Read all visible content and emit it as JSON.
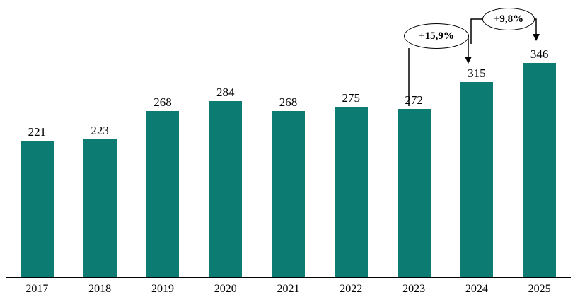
{
  "chart_data": {
    "type": "bar",
    "title": "",
    "xlabel": "",
    "ylabel": "",
    "categories": [
      "2017",
      "2018",
      "2019",
      "2020",
      "2021",
      "2022",
      "2023",
      "2024",
      "2025"
    ],
    "values": [
      221,
      223,
      268,
      284,
      268,
      275,
      272,
      315,
      346
    ],
    "ylim": [
      0,
      400
    ],
    "grid": false,
    "legend": false,
    "bar_color": "#0c7b72",
    "axis_color": "#000000",
    "label_color": "#000000",
    "annotations": [
      {
        "label": "+15,9%",
        "from": "2023",
        "to": "2024"
      },
      {
        "label": "+9,8%",
        "from": "2024",
        "to": "2025"
      }
    ]
  }
}
